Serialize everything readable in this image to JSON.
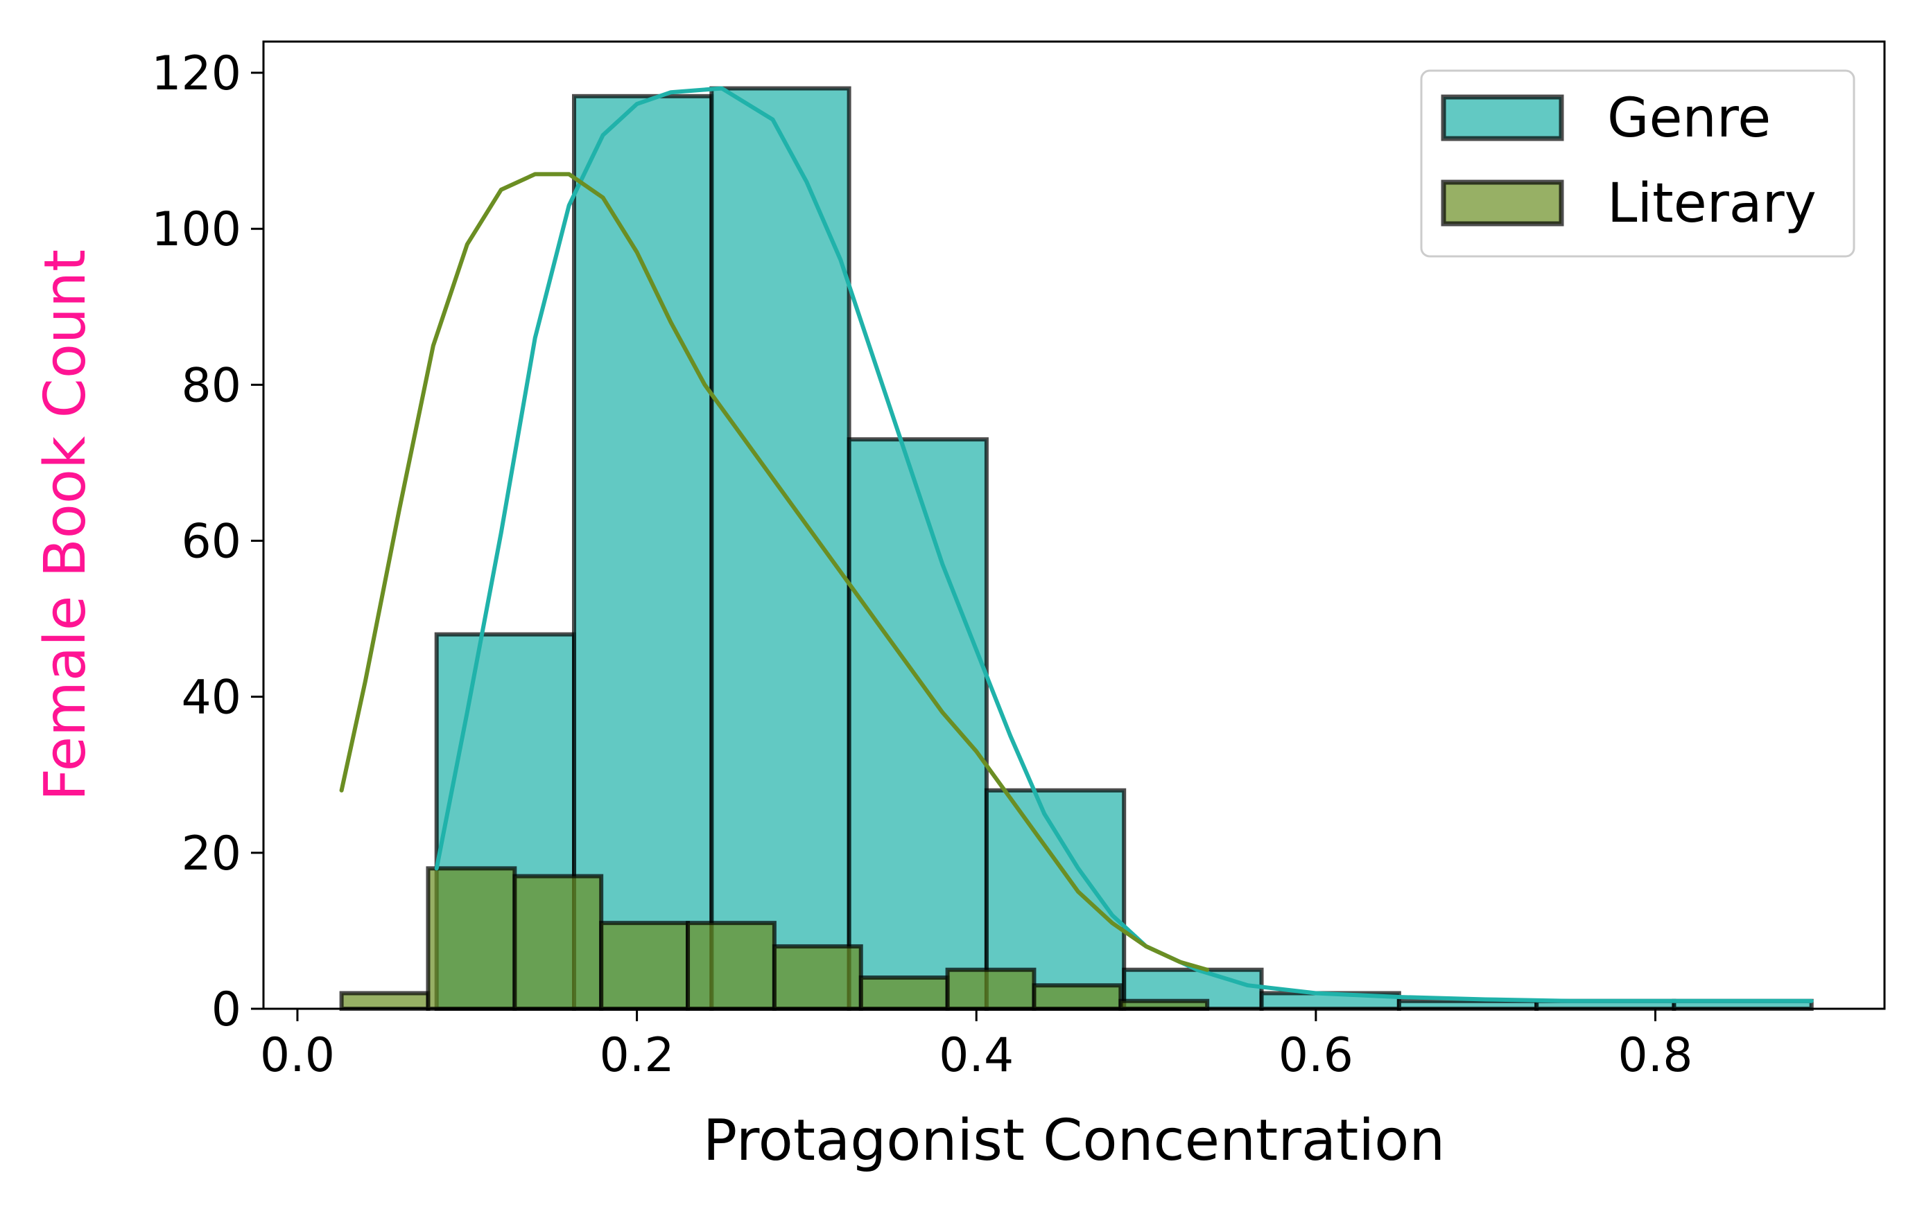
{
  "chart_data": {
    "type": "bar",
    "xlabel": "Protagonist Concentration",
    "ylabel": "Female Book Count",
    "xlim": [
      -0.02,
      0.935
    ],
    "ylim": [
      0,
      124
    ],
    "xticks": [
      0.0,
      0.2,
      0.4,
      0.6,
      0.8
    ],
    "xtick_labels": [
      "0.0",
      "0.2",
      "0.4",
      "0.6",
      "0.8"
    ],
    "yticks": [
      0,
      20,
      40,
      60,
      80,
      100,
      120
    ],
    "ytick_labels": [
      "0",
      "20",
      "40",
      "60",
      "80",
      "100",
      "120"
    ],
    "grid": false,
    "legend_position": "top-right",
    "colors": {
      "ylabel": "#ff1493",
      "genre_fill": "#20b2aa",
      "genre_line": "#20b2aa",
      "literary_fill": "#6b8e23",
      "literary_line": "#6b8e23",
      "bar_edge": "#000000"
    },
    "series": [
      {
        "name": "Genre",
        "bins": [
          {
            "x0": 0.082,
            "x1": 0.163,
            "count": 48
          },
          {
            "x0": 0.163,
            "x1": 0.244,
            "count": 117
          },
          {
            "x0": 0.244,
            "x1": 0.325,
            "count": 118
          },
          {
            "x0": 0.325,
            "x1": 0.406,
            "count": 73
          },
          {
            "x0": 0.406,
            "x1": 0.487,
            "count": 28
          },
          {
            "x0": 0.487,
            "x1": 0.568,
            "count": 5
          },
          {
            "x0": 0.568,
            "x1": 0.649,
            "count": 2
          },
          {
            "x0": 0.649,
            "x1": 0.73,
            "count": 1
          },
          {
            "x0": 0.73,
            "x1": 0.811,
            "count": 1
          },
          {
            "x0": 0.811,
            "x1": 0.892,
            "count": 1
          }
        ],
        "kde": [
          [
            0.082,
            18
          ],
          [
            0.1,
            38
          ],
          [
            0.12,
            61
          ],
          [
            0.14,
            86
          ],
          [
            0.16,
            103
          ],
          [
            0.18,
            112
          ],
          [
            0.2,
            116
          ],
          [
            0.22,
            117.5
          ],
          [
            0.25,
            118
          ],
          [
            0.28,
            114
          ],
          [
            0.3,
            106
          ],
          [
            0.32,
            96
          ],
          [
            0.34,
            83
          ],
          [
            0.36,
            70
          ],
          [
            0.38,
            57
          ],
          [
            0.4,
            46
          ],
          [
            0.42,
            35
          ],
          [
            0.44,
            25
          ],
          [
            0.46,
            18
          ],
          [
            0.48,
            12
          ],
          [
            0.5,
            8
          ],
          [
            0.53,
            5
          ],
          [
            0.56,
            3
          ],
          [
            0.6,
            2
          ],
          [
            0.65,
            1.5
          ],
          [
            0.7,
            1.2
          ],
          [
            0.75,
            1
          ],
          [
            0.8,
            1
          ],
          [
            0.85,
            1
          ],
          [
            0.892,
            1
          ]
        ]
      },
      {
        "name": "Literary",
        "bins": [
          {
            "x0": 0.026,
            "x1": 0.077,
            "count": 2
          },
          {
            "x0": 0.077,
            "x1": 0.128,
            "count": 18
          },
          {
            "x0": 0.128,
            "x1": 0.179,
            "count": 17
          },
          {
            "x0": 0.179,
            "x1": 0.23,
            "count": 11
          },
          {
            "x0": 0.23,
            "x1": 0.281,
            "count": 11
          },
          {
            "x0": 0.281,
            "x1": 0.332,
            "count": 8
          },
          {
            "x0": 0.332,
            "x1": 0.383,
            "count": 4
          },
          {
            "x0": 0.383,
            "x1": 0.434,
            "count": 5
          },
          {
            "x0": 0.434,
            "x1": 0.485,
            "count": 3
          },
          {
            "x0": 0.485,
            "x1": 0.536,
            "count": 1
          }
        ],
        "kde": [
          [
            0.026,
            28
          ],
          [
            0.04,
            42
          ],
          [
            0.06,
            64
          ],
          [
            0.08,
            85
          ],
          [
            0.1,
            98
          ],
          [
            0.12,
            105
          ],
          [
            0.14,
            107
          ],
          [
            0.16,
            107
          ],
          [
            0.18,
            104
          ],
          [
            0.2,
            97
          ],
          [
            0.22,
            88
          ],
          [
            0.24,
            80
          ],
          [
            0.26,
            74
          ],
          [
            0.28,
            68
          ],
          [
            0.3,
            62
          ],
          [
            0.32,
            56
          ],
          [
            0.34,
            50
          ],
          [
            0.36,
            44
          ],
          [
            0.38,
            38
          ],
          [
            0.4,
            33
          ],
          [
            0.42,
            27
          ],
          [
            0.44,
            21
          ],
          [
            0.46,
            15
          ],
          [
            0.48,
            11
          ],
          [
            0.5,
            8
          ],
          [
            0.52,
            6
          ],
          [
            0.536,
            5
          ]
        ]
      }
    ]
  }
}
